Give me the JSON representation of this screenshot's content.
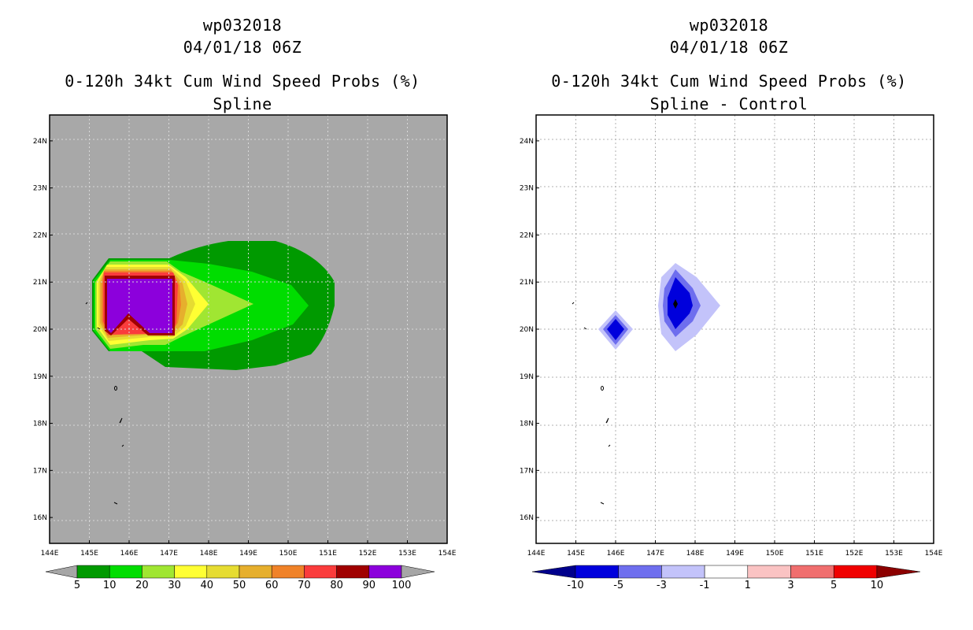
{
  "left": {
    "storm_id": "wp032018",
    "datetime": "04/01/18 06Z",
    "title": "0-120h 34kt Cum Wind Speed Probs (%)",
    "subtitle": "Spline",
    "colorbar": {
      "levels": [
        "5",
        "10",
        "20",
        "30",
        "40",
        "50",
        "60",
        "70",
        "80",
        "90",
        "100"
      ],
      "colors": [
        "#009a00",
        "#00dd00",
        "#a0e632",
        "#ffff33",
        "#e6dc32",
        "#e6af2d",
        "#f08228",
        "#fa3c3c",
        "#a00000",
        "#8c00dc"
      ],
      "end_color": "#a6a6a6"
    }
  },
  "right": {
    "storm_id": "wp032018",
    "datetime": "04/01/18 06Z",
    "title": "0-120h 34kt Cum Wind Speed Probs (%)",
    "subtitle": "Spline - Control",
    "colorbar": {
      "levels": [
        "-10",
        "-5",
        "-3",
        "-1",
        "1",
        "3",
        "5",
        "10"
      ],
      "colors": [
        "#0000dc",
        "#6e6eee",
        "#c3c3fa",
        "#ffffff",
        "#fac3c3",
        "#f06e6e",
        "#f00000"
      ],
      "end_left": "#00008c",
      "end_right": "#8c0000"
    }
  },
  "map": {
    "lon_labels": [
      "144E",
      "145E",
      "146E",
      "147E",
      "148E",
      "149E",
      "150E",
      "151E",
      "152E",
      "153E",
      "154E"
    ],
    "lat_labels": [
      "24N",
      "23N",
      "22N",
      "21N",
      "20N",
      "19N",
      "18N",
      "17N",
      "16N"
    ],
    "lon_range": [
      144,
      154
    ],
    "lat_range": [
      15.45,
      24.55
    ],
    "left_background": "#a8a8a8",
    "right_background": "#ffffff"
  }
}
